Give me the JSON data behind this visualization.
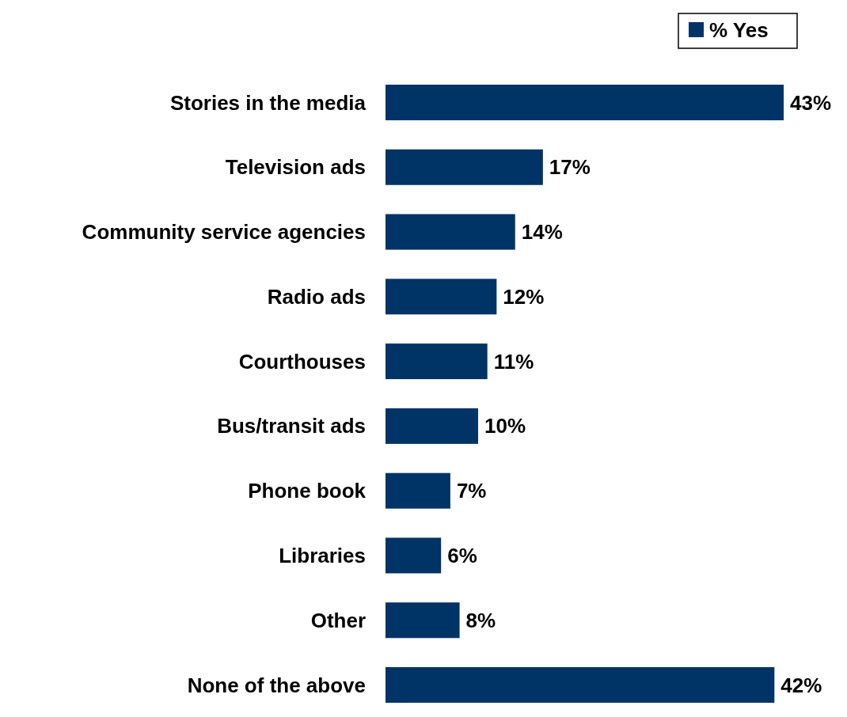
{
  "chart_data": {
    "type": "bar",
    "orientation": "horizontal",
    "categories": [
      "Stories in the media",
      "Television ads",
      "Community service agencies",
      "Radio ads",
      "Courthouses",
      "Bus/transit ads",
      "Phone book",
      "Libraries",
      "Other",
      "None of the above"
    ],
    "series": [
      {
        "name": "% Yes",
        "color": "#003366",
        "values": [
          43,
          17,
          14,
          12,
          11,
          10,
          7,
          6,
          8,
          42
        ],
        "value_labels": [
          "43%",
          "17%",
          "14%",
          "12%",
          "11%",
          "10%",
          "7%",
          "6%",
          "8%",
          "42%"
        ]
      }
    ],
    "legend": "top right",
    "grid": false
  }
}
